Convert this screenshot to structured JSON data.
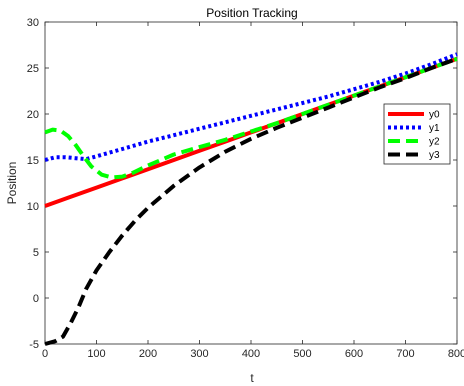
{
  "chart_data": {
    "type": "line",
    "title": "Position Tracking",
    "xlabel": "t",
    "ylabel": "Position",
    "xlim": [
      0,
      800
    ],
    "ylim": [
      -5,
      30
    ],
    "xticks": [
      0,
      100,
      200,
      300,
      400,
      500,
      600,
      700,
      800
    ],
    "yticks": [
      -5,
      0,
      5,
      10,
      15,
      20,
      25,
      30
    ],
    "grid": false,
    "legend_position": "right",
    "series": [
      {
        "name": "y0",
        "color": "#ff0000",
        "style": "solid",
        "x": [
          0,
          50,
          100,
          150,
          200,
          250,
          300,
          350,
          400,
          450,
          500,
          550,
          600,
          650,
          700,
          750,
          800
        ],
        "y": [
          10,
          11,
          12,
          13,
          14,
          15,
          16,
          17,
          18,
          19,
          20,
          21,
          22,
          23,
          24,
          25,
          26
        ]
      },
      {
        "name": "y1",
        "color": "#0000ff",
        "style": "dotted",
        "x": [
          0,
          20,
          40,
          60,
          80,
          100,
          150,
          200,
          250,
          300,
          350,
          400,
          450,
          500,
          550,
          600,
          650,
          700,
          750,
          800
        ],
        "y": [
          15,
          15.3,
          15.3,
          15.2,
          15.1,
          15.4,
          16.2,
          17,
          17.7,
          18.4,
          19.1,
          19.8,
          20.5,
          21.2,
          21.9,
          22.7,
          23.5,
          24.4,
          25.4,
          26.5
        ]
      },
      {
        "name": "y2",
        "color": "#00ff00",
        "style": "dashed",
        "x": [
          0,
          15,
          30,
          45,
          60,
          75,
          90,
          110,
          130,
          150,
          170,
          200,
          250,
          300,
          350,
          400,
          450,
          500,
          550,
          600,
          650,
          700,
          750,
          800
        ],
        "y": [
          18,
          18.3,
          18.2,
          17.6,
          16.6,
          15.4,
          14.3,
          13.4,
          13.1,
          13.2,
          13.6,
          14.4,
          15.6,
          16.4,
          17.2,
          18.1,
          19,
          20,
          21,
          22,
          23,
          24,
          25,
          26
        ]
      },
      {
        "name": "y3",
        "color": "#000000",
        "style": "dashed",
        "x": [
          0,
          20,
          35,
          50,
          65,
          80,
          100,
          125,
          150,
          175,
          200,
          250,
          300,
          350,
          400,
          450,
          500,
          550,
          600,
          650,
          700,
          750,
          800
        ],
        "y": [
          -5,
          -4.7,
          -4.2,
          -2.7,
          -1,
          1,
          3,
          5,
          6.8,
          8.4,
          9.8,
          12.2,
          14.2,
          15.9,
          17.3,
          18.5,
          19.6,
          20.7,
          21.8,
          22.9,
          23.9,
          25,
          26
        ]
      }
    ]
  }
}
